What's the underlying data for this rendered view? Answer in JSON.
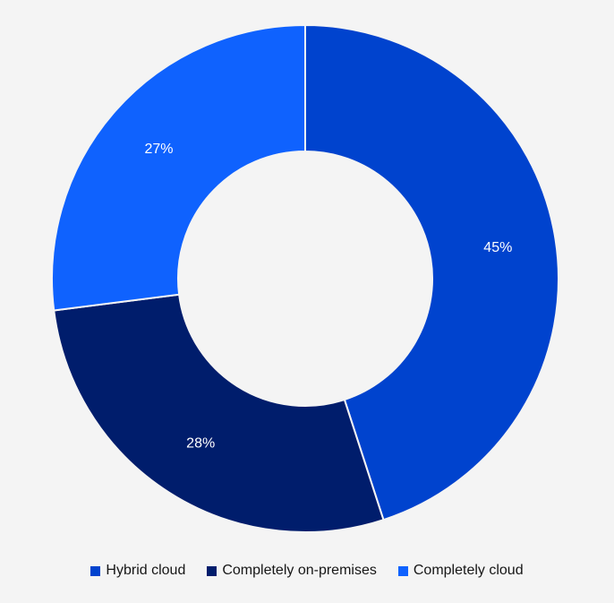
{
  "chart_data": {
    "type": "pie",
    "variant": "donut",
    "categories": [
      "Hybrid cloud",
      "Completely on-premises",
      "Completely cloud"
    ],
    "values": [
      45,
      28,
      27
    ],
    "labels": [
      "45%",
      "28%",
      "27%"
    ],
    "colors": [
      "#0043ce",
      "#001d6c",
      "#0f62fe"
    ],
    "background": "#f4f4f4",
    "label_color": "#ffffff",
    "start": "top, clockwise",
    "legend_position": "bottom-center"
  }
}
